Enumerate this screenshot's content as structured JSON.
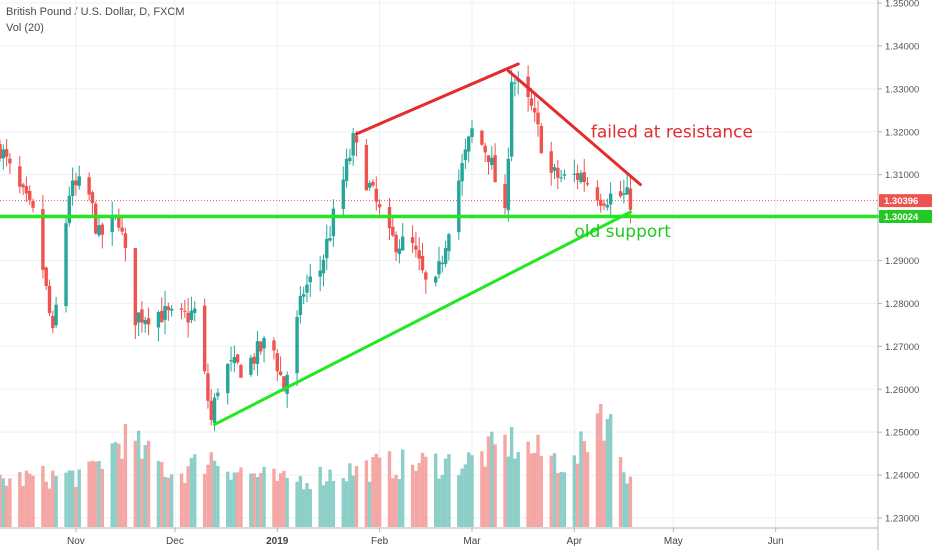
{
  "legend": {
    "symbol": "British Pound / U.S. Dollar, D, FXCM",
    "volume": "Vol (20)"
  },
  "colors": {
    "up": "#26a69a",
    "down": "#ef5350",
    "up_volume": "#8ccfc8",
    "down_volume": "#f4a7a4",
    "support": "#22e822",
    "resistance": "#e52b2b",
    "price_tag": "#ef5350",
    "level_tag": "#22c922"
  },
  "chart_data": {
    "type": "candlestick",
    "y_range": [
      1.23,
      1.35
    ],
    "y_ticks": [
      1.35,
      1.34,
      1.33,
      1.32,
      1.31,
      1.3,
      1.29,
      1.28,
      1.27,
      1.26,
      1.25,
      1.24,
      1.23
    ],
    "y_tick_labels": [
      "1.35000",
      "1.34000",
      "1.33000",
      "1.32000",
      "1.31000",
      "1.30000",
      "1.29000",
      "1.28000",
      "1.27000",
      "1.26000",
      "1.25000",
      "1.24000",
      "1.23000"
    ],
    "x_range": [
      "2018-10-09",
      "2019-07-02"
    ],
    "x_ticks": [
      {
        "date": "2018-11-01",
        "label": "Nov",
        "bold": false
      },
      {
        "date": "2018-12-01",
        "label": "Dec",
        "bold": false
      },
      {
        "date": "2019-01-01",
        "label": "2019",
        "bold": true
      },
      {
        "date": "2019-02-01",
        "label": "Feb",
        "bold": false
      },
      {
        "date": "2019-03-01",
        "label": "Mar",
        "bold": false
      },
      {
        "date": "2019-04-01",
        "label": "Apr",
        "bold": false
      },
      {
        "date": "2019-05-01",
        "label": "May",
        "bold": false
      },
      {
        "date": "2019-06-01",
        "label": "Jun",
        "bold": false
      }
    ],
    "last_price": {
      "value": 1.30396,
      "label": "1.30396"
    },
    "horizontal_level": {
      "value": 1.30024,
      "label": "1.30024"
    },
    "series_anchors": {
      "dates": [
        "2018-10-09",
        "2018-10-13",
        "2018-10-20",
        "2018-10-25",
        "2018-10-30",
        "2018-11-04",
        "2018-11-08",
        "2018-11-14",
        "2018-11-19",
        "2018-11-26",
        "2018-12-02",
        "2018-12-07",
        "2018-12-12",
        "2018-12-15",
        "2018-12-22",
        "2018-12-30",
        "2019-01-03",
        "2019-01-09",
        "2019-01-14",
        "2019-01-24",
        "2019-01-29",
        "2019-02-04",
        "2019-02-11",
        "2019-02-17",
        "2019-02-24",
        "2019-03-01",
        "2019-03-06",
        "2019-03-11",
        "2019-03-13",
        "2019-03-19",
        "2019-03-25",
        "2019-03-29",
        "2019-04-03",
        "2019-04-09",
        "2019-04-16",
        "2019-04-18"
      ],
      "close": [
        1.3165,
        1.309,
        1.299,
        1.272,
        1.306,
        1.308,
        1.2955,
        1.3,
        1.277,
        1.278,
        1.276,
        1.278,
        1.2525,
        1.265,
        1.265,
        1.272,
        1.26,
        1.283,
        1.288,
        1.3175,
        1.307,
        1.295,
        1.293,
        1.28,
        1.306,
        1.32,
        1.315,
        1.2995,
        1.333,
        1.325,
        1.31,
        1.309,
        1.31,
        1.305,
        1.305,
        1.304
      ]
    },
    "volume_range": [
      0,
      14
    ],
    "volume_anchors": {
      "dates": [
        "2018-10-09",
        "2018-11-05",
        "2018-11-15",
        "2018-12-01",
        "2018-12-12",
        "2018-12-20",
        "2019-01-03",
        "2019-02-01",
        "2019-03-01",
        "2019-03-12",
        "2019-04-01",
        "2019-04-09",
        "2019-04-18"
      ],
      "values": [
        5.0,
        5.6,
        9.5,
        5.5,
        7.5,
        6.0,
        4.8,
        6.5,
        7.0,
        9.0,
        6.5,
        13.0,
        5.0
      ]
    },
    "trendlines": [
      {
        "name": "support",
        "color": "support",
        "from": {
          "date": "2018-12-13",
          "value": 1.2518
        },
        "to": {
          "date": "2019-04-18",
          "value": 1.3013
        }
      },
      {
        "name": "upper-rising",
        "color": "resistance",
        "from": {
          "date": "2019-01-25",
          "value": 1.3195
        },
        "to": {
          "date": "2019-03-15",
          "value": 1.3358
        }
      },
      {
        "name": "falling-resistance",
        "color": "resistance",
        "from": {
          "date": "2019-03-12",
          "value": 1.3342
        },
        "to": {
          "date": "2019-04-21",
          "value": 1.3077
        }
      },
      {
        "name": "old-support-level",
        "color": "support",
        "from": {
          "date": "2018-10-09",
          "value": 1.30024
        },
        "to": {
          "date": "2019-07-02",
          "value": 1.30024
        }
      }
    ],
    "annotations": [
      {
        "text": "failed at resistance",
        "date": "2019-04-06",
        "value": 1.3187,
        "color": "resistance"
      },
      {
        "text": "old support",
        "date": "2019-04-01",
        "value": 1.2955,
        "color": "level_tag"
      }
    ]
  }
}
